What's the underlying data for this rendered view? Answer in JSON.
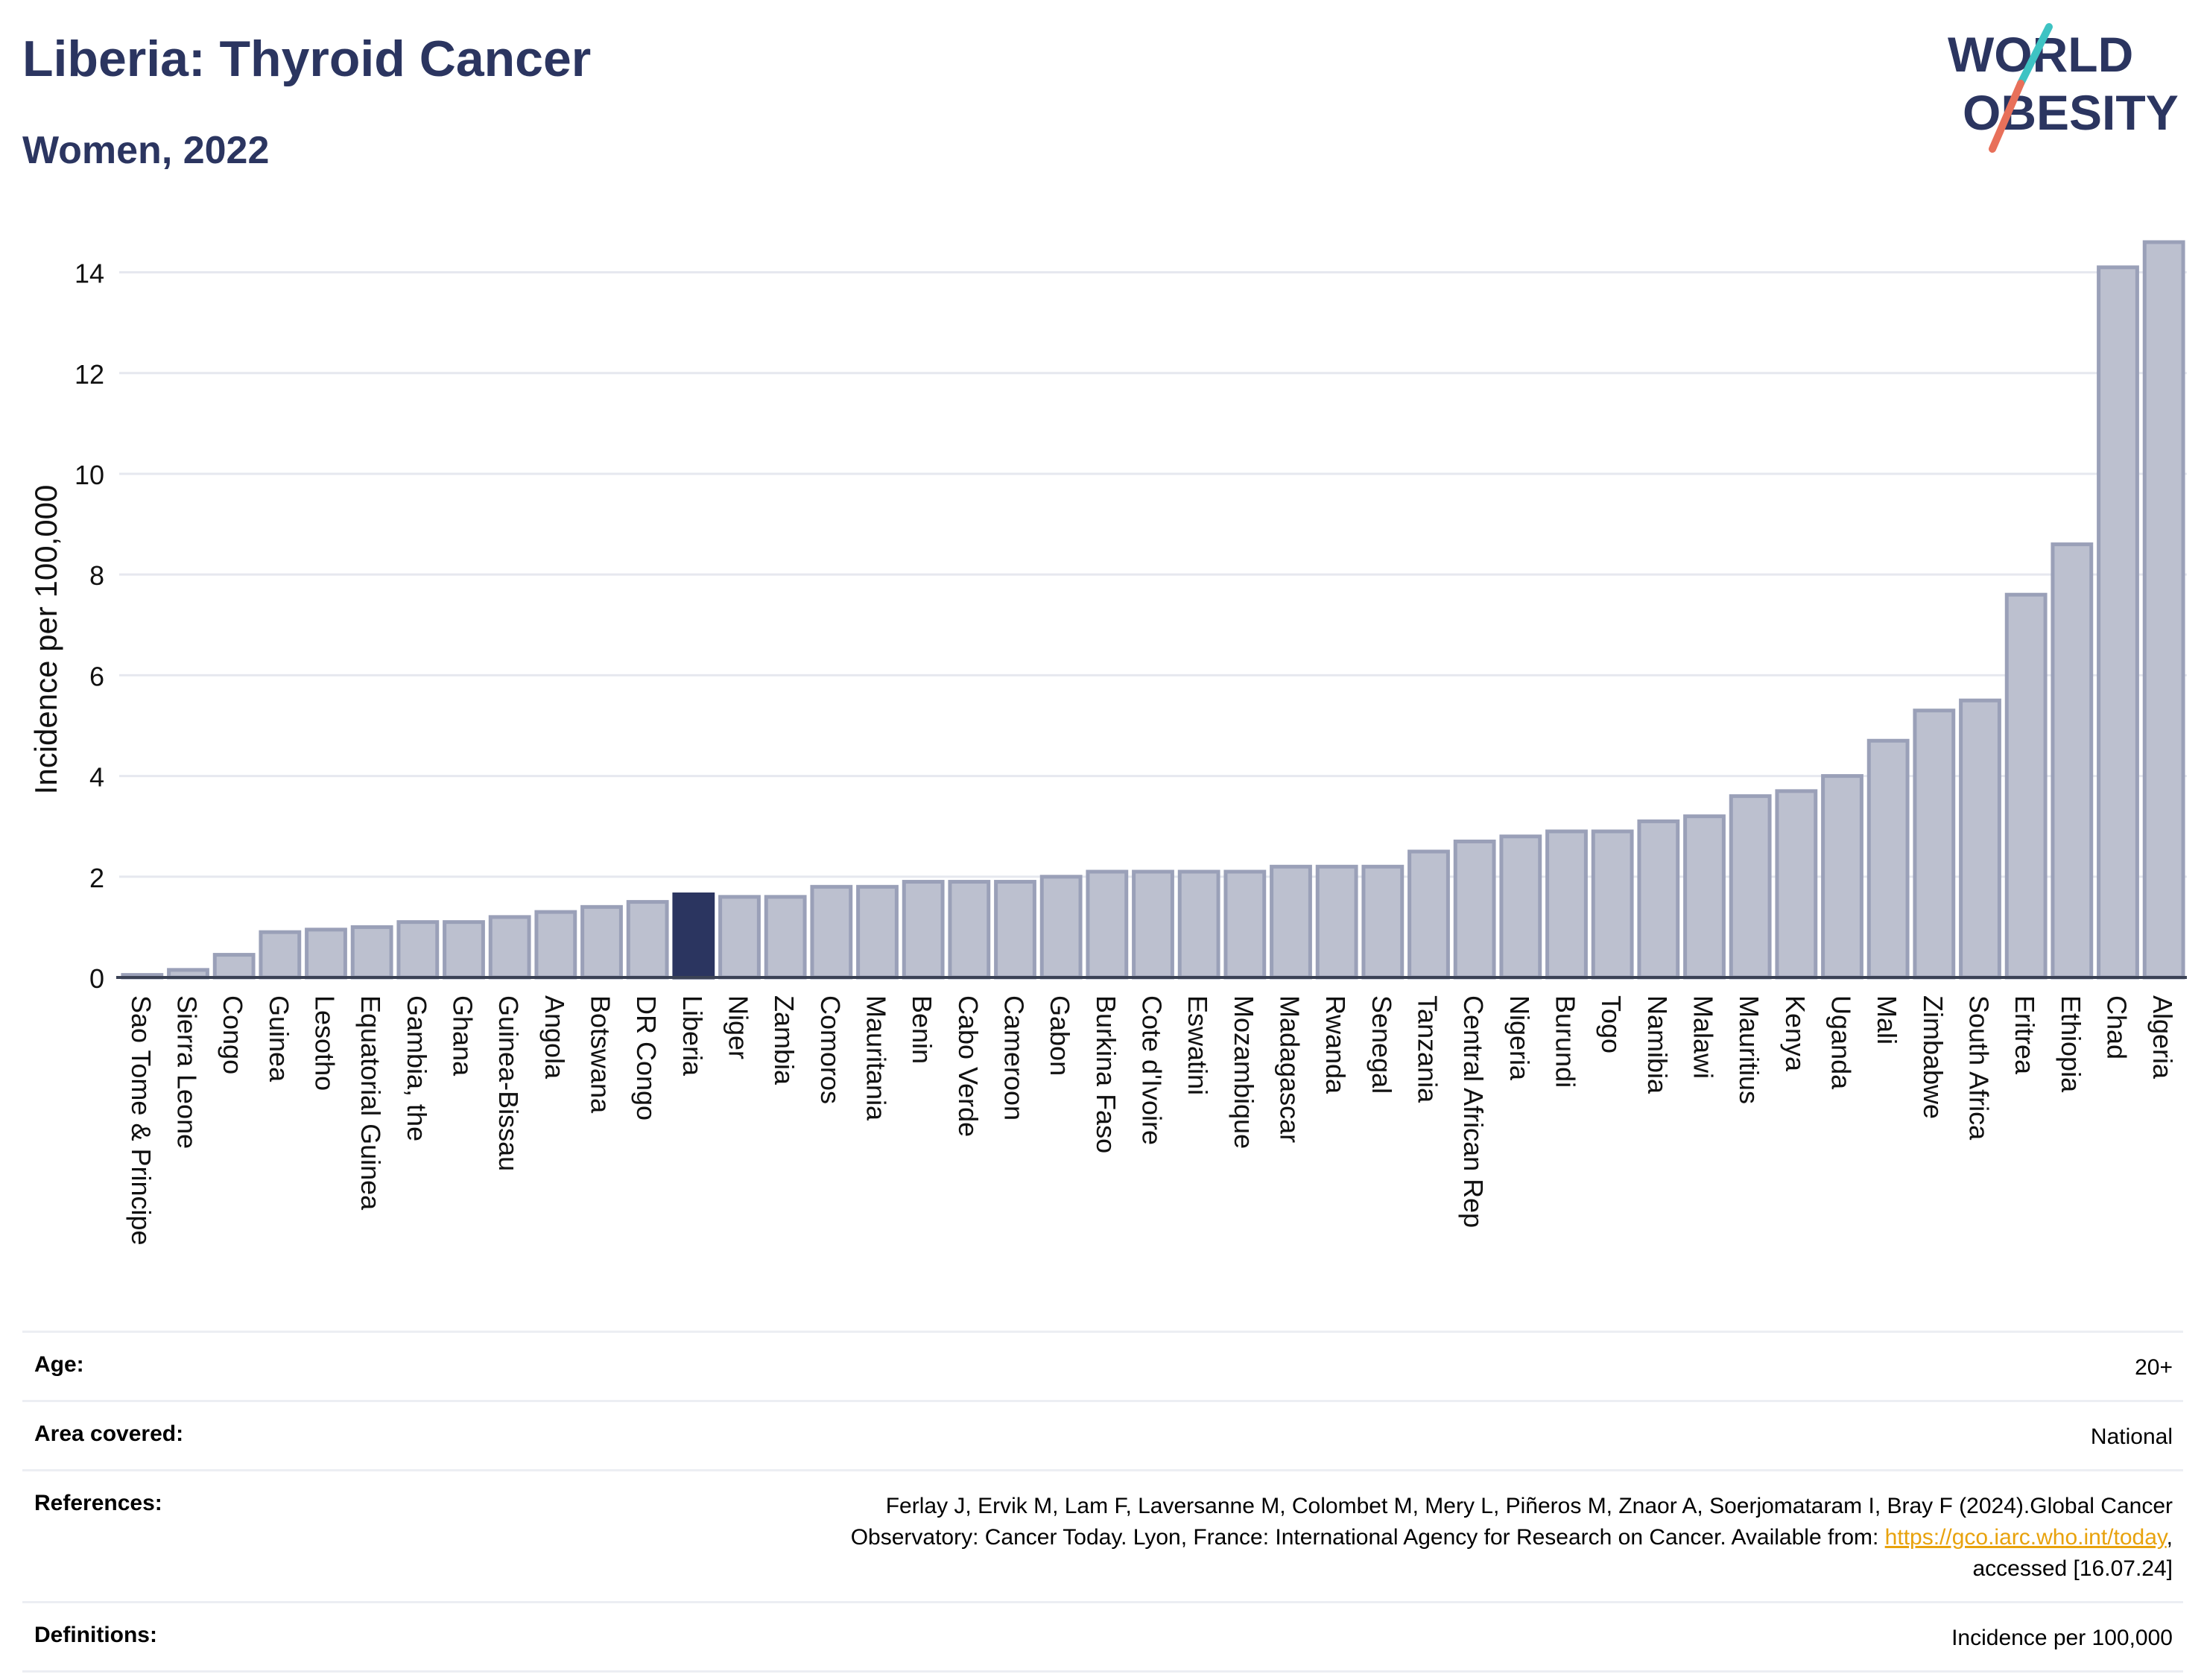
{
  "header": {
    "title": "Liberia: Thyroid Cancer",
    "subtitle": "Women, 2022"
  },
  "logo": {
    "line1": "WORLD",
    "line2": "OBESITY",
    "colors": {
      "text": "#2b3560",
      "slash_top": "#3ec3c3",
      "slash_bottom": "#e8705a"
    }
  },
  "colors": {
    "highlight_bar": "#2b3560",
    "bar_fill": "#bcc0cf",
    "bar_stroke": "#9aa0b8",
    "grid": "#e6e8ef",
    "axis": "#3b4255"
  },
  "chart_data": {
    "type": "bar",
    "title": "",
    "xlabel": "",
    "ylabel": "Incidence per 100,000",
    "ylim": [
      0,
      14.6
    ],
    "yticks": [
      0,
      2,
      4,
      6,
      8,
      10,
      12,
      14
    ],
    "grid": true,
    "highlight": "Liberia",
    "categories": [
      "Sao Tome & Principe",
      "Sierra Leone",
      "Congo",
      "Guinea",
      "Lesotho",
      "Equatorial Guinea",
      "Gambia, the",
      "Ghana",
      "Guinea-Bissau",
      "Angola",
      "Botswana",
      "DR Congo",
      "Liberia",
      "Niger",
      "Zambia",
      "Comoros",
      "Mauritania",
      "Benin",
      "Cabo Verde",
      "Cameroon",
      "Gabon",
      "Burkina Faso",
      "Cote d'Ivoire",
      "Eswatini",
      "Mozambique",
      "Madagascar",
      "Rwanda",
      "Senegal",
      "Tanzania",
      "Central African Rep",
      "Nigeria",
      "Burundi",
      "Togo",
      "Namibia",
      "Malawi",
      "Mauritius",
      "Kenya",
      "Uganda",
      "Mali",
      "Zimbabwe",
      "South Africa",
      "Eritrea",
      "Ethiopia",
      "Chad",
      "Algeria"
    ],
    "values": [
      0.05,
      0.15,
      0.45,
      0.9,
      0.95,
      1.0,
      1.1,
      1.1,
      1.2,
      1.3,
      1.4,
      1.5,
      1.65,
      1.6,
      1.6,
      1.8,
      1.8,
      1.9,
      1.9,
      1.9,
      2.0,
      2.1,
      2.1,
      2.1,
      2.1,
      2.2,
      2.2,
      2.2,
      2.5,
      2.7,
      2.8,
      2.9,
      2.9,
      3.1,
      3.2,
      3.6,
      3.7,
      4.0,
      4.7,
      5.3,
      5.5,
      7.6,
      8.6,
      14.1,
      14.6
    ]
  },
  "meta": {
    "age_label": "Age:",
    "age_value": "20+",
    "area_label": "Area covered:",
    "area_value": "National",
    "references_label": "References:",
    "references_line1": "Ferlay J, Ervik M, Lam F, Laversanne M, Colombet M, Mery L, Piñeros M, Znaor A, Soerjomataram I, Bray F (2024).Global Cancer",
    "references_line2_prefix": "Observatory: Cancer Today. Lyon, France: International Agency for Research on Cancer. Available from: ",
    "references_link": "https://gco.iarc.who.int/today",
    "references_line2_suffix": ",",
    "references_line3": "accessed [16.07.24]",
    "definitions_label": "Definitions:",
    "definitions_value": "Incidence per 100,000"
  }
}
